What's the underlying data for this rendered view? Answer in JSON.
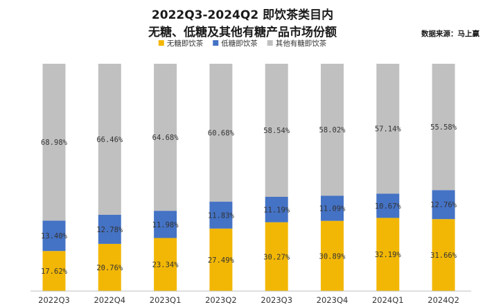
{
  "chart_data": {
    "type": "bar",
    "stacked": true,
    "title_line1": "2022Q3-2024Q2 即饮茶类目内",
    "title_line2": "无糖、低糖及其他有糖产品市场份额",
    "source": "数据来源：马上赢",
    "categories": [
      "2022Q3",
      "2022Q4",
      "2023Q1",
      "2023Q2",
      "2023Q3",
      "2023Q4",
      "2024Q1",
      "2024Q2"
    ],
    "series": [
      {
        "name": "无糖即饮茶",
        "color": "#F2B705",
        "values": [
          17.62,
          20.76,
          23.34,
          27.49,
          30.27,
          30.89,
          32.19,
          31.66
        ],
        "labels": [
          "17.62%",
          "20.76%",
          "23.34%",
          "27.49%",
          "30.27%",
          "30.89%",
          "32.19%",
          "31.66%"
        ]
      },
      {
        "name": "低糖即饮茶",
        "color": "#4472C4",
        "values": [
          13.4,
          12.78,
          11.98,
          11.83,
          11.19,
          11.09,
          10.67,
          12.76
        ],
        "labels": [
          "13.40%",
          "12.78%",
          "11.98%",
          "11.83%",
          "11.19%",
          "11.09%",
          "10.67%",
          "12.76%"
        ]
      },
      {
        "name": "其他有糖即饮茶",
        "color": "#C0C0C0",
        "values": [
          68.98,
          66.46,
          64.68,
          60.68,
          58.54,
          58.02,
          57.14,
          55.58
        ],
        "labels": [
          "68.98%",
          "66.46%",
          "64.68%",
          "60.68%",
          "58.54%",
          "58.02%",
          "57.14%",
          "55.58%"
        ]
      }
    ],
    "ylim": [
      0,
      100
    ],
    "legend_position": "top-center",
    "grid": false
  }
}
